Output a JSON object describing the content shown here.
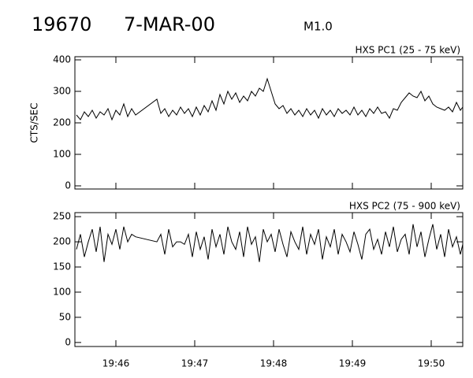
{
  "header": {
    "id": "19670",
    "date": "7-MAR-00",
    "class": "M1.0"
  },
  "chart_data": [
    {
      "type": "line",
      "title": "HXS PC1 (25 - 75 keV)",
      "y_label": "CTS/SEC",
      "x": [
        1185.5,
        1185.55,
        1185.6,
        1185.65,
        1185.7,
        1185.75,
        1185.8,
        1185.85,
        1185.9,
        1185.95,
        1186,
        1186.05,
        1186.1,
        1186.15,
        1186.2,
        1186.25,
        1186.52,
        1186.57,
        1186.62,
        1186.67,
        1186.72,
        1186.77,
        1186.82,
        1186.87,
        1186.92,
        1186.97,
        1187.02,
        1187.07,
        1187.12,
        1187.17,
        1187.22,
        1187.27,
        1187.32,
        1187.37,
        1187.42,
        1187.47,
        1187.52,
        1187.57,
        1187.62,
        1187.67,
        1187.72,
        1187.77,
        1187.82,
        1187.87,
        1187.92,
        1187.97,
        1188.02,
        1188.07,
        1188.12,
        1188.17,
        1188.22,
        1188.27,
        1188.32,
        1188.37,
        1188.42,
        1188.47,
        1188.52,
        1188.57,
        1188.62,
        1188.67,
        1188.72,
        1188.77,
        1188.82,
        1188.87,
        1188.92,
        1188.97,
        1189.02,
        1189.07,
        1189.12,
        1189.17,
        1189.22,
        1189.27,
        1189.32,
        1189.37,
        1189.42,
        1189.47,
        1189.52,
        1189.57,
        1189.62,
        1189.67,
        1189.72,
        1189.77,
        1189.82,
        1189.87,
        1189.92,
        1189.97,
        1190.02,
        1190.07,
        1190.12,
        1190.17,
        1190.22,
        1190.27,
        1190.32,
        1190.37,
        1190.4
      ],
      "series": [
        {
          "color": "#000000",
          "values": [
            225,
            210,
            235,
            220,
            240,
            215,
            235,
            225,
            245,
            210,
            240,
            225,
            260,
            220,
            245,
            225,
            275,
            230,
            245,
            220,
            240,
            225,
            250,
            230,
            245,
            220,
            250,
            225,
            255,
            235,
            270,
            240,
            290,
            260,
            300,
            275,
            295,
            265,
            285,
            270,
            300,
            285,
            310,
            300,
            340,
            300,
            260,
            245,
            255,
            230,
            245,
            225,
            240,
            220,
            245,
            225,
            240,
            215,
            245,
            225,
            240,
            220,
            245,
            230,
            240,
            225,
            250,
            225,
            240,
            220,
            245,
            230,
            250,
            230,
            235,
            215,
            245,
            240,
            265,
            280,
            295,
            285,
            280,
            300,
            270,
            285,
            260,
            250,
            245,
            240,
            250,
            235,
            265,
            240,
            250
          ]
        }
      ],
      "xlim": [
        1185.48,
        1190.4
      ],
      "xticks": [
        1186,
        1187,
        1188,
        1189,
        1190
      ],
      "ylim": [
        -10,
        410
      ],
      "yticks": [
        0,
        100,
        200,
        300,
        400
      ]
    },
    {
      "type": "line",
      "title": "HXS PC2 (75 - 900 keV)",
      "x": [
        1185.5,
        1185.55,
        1185.6,
        1185.65,
        1185.7,
        1185.75,
        1185.8,
        1185.85,
        1185.9,
        1185.95,
        1186,
        1186.05,
        1186.1,
        1186.15,
        1186.2,
        1186.25,
        1186.52,
        1186.57,
        1186.62,
        1186.67,
        1186.72,
        1186.77,
        1186.82,
        1186.87,
        1186.92,
        1186.97,
        1187.02,
        1187.07,
        1187.12,
        1187.17,
        1187.22,
        1187.27,
        1187.32,
        1187.37,
        1187.42,
        1187.47,
        1187.52,
        1187.57,
        1187.62,
        1187.67,
        1187.72,
        1187.77,
        1187.82,
        1187.87,
        1187.92,
        1187.97,
        1188.02,
        1188.07,
        1188.12,
        1188.17,
        1188.22,
        1188.27,
        1188.32,
        1188.37,
        1188.42,
        1188.47,
        1188.52,
        1188.57,
        1188.62,
        1188.67,
        1188.72,
        1188.77,
        1188.82,
        1188.87,
        1188.92,
        1188.97,
        1189.02,
        1189.07,
        1189.12,
        1189.17,
        1189.22,
        1189.27,
        1189.32,
        1189.37,
        1189.42,
        1189.47,
        1189.52,
        1189.57,
        1189.62,
        1189.67,
        1189.72,
        1189.77,
        1189.82,
        1189.87,
        1189.92,
        1189.97,
        1190.02,
        1190.07,
        1190.12,
        1190.17,
        1190.22,
        1190.27,
        1190.32,
        1190.37,
        1190.4
      ],
      "series": [
        {
          "color": "#000000",
          "values": [
            185,
            215,
            170,
            200,
            225,
            180,
            230,
            160,
            215,
            195,
            225,
            185,
            230,
            200,
            215,
            210,
            200,
            215,
            175,
            225,
            190,
            200,
            200,
            195,
            215,
            170,
            220,
            185,
            210,
            165,
            225,
            190,
            215,
            175,
            230,
            200,
            185,
            220,
            170,
            230,
            195,
            210,
            160,
            225,
            200,
            215,
            180,
            225,
            195,
            170,
            220,
            200,
            185,
            230,
            175,
            215,
            195,
            225,
            165,
            210,
            190,
            225,
            175,
            215,
            200,
            180,
            220,
            195,
            165,
            215,
            225,
            185,
            205,
            175,
            220,
            190,
            230,
            180,
            205,
            215,
            175,
            235,
            190,
            220,
            170,
            205,
            235,
            185,
            215,
            170,
            225,
            190,
            210,
            175,
            195
          ]
        }
      ],
      "xlim": [
        1185.48,
        1190.4
      ],
      "xticks": [
        {
          "value": 1186,
          "label": "19:46"
        },
        {
          "value": 1187,
          "label": "19:47"
        },
        {
          "value": 1188,
          "label": "19:48"
        },
        {
          "value": 1189,
          "label": "19:49"
        },
        {
          "value": 1190,
          "label": "19:50"
        }
      ],
      "ylim": [
        -8,
        258
      ],
      "yticks": [
        0,
        50,
        100,
        150,
        200,
        250
      ]
    }
  ]
}
